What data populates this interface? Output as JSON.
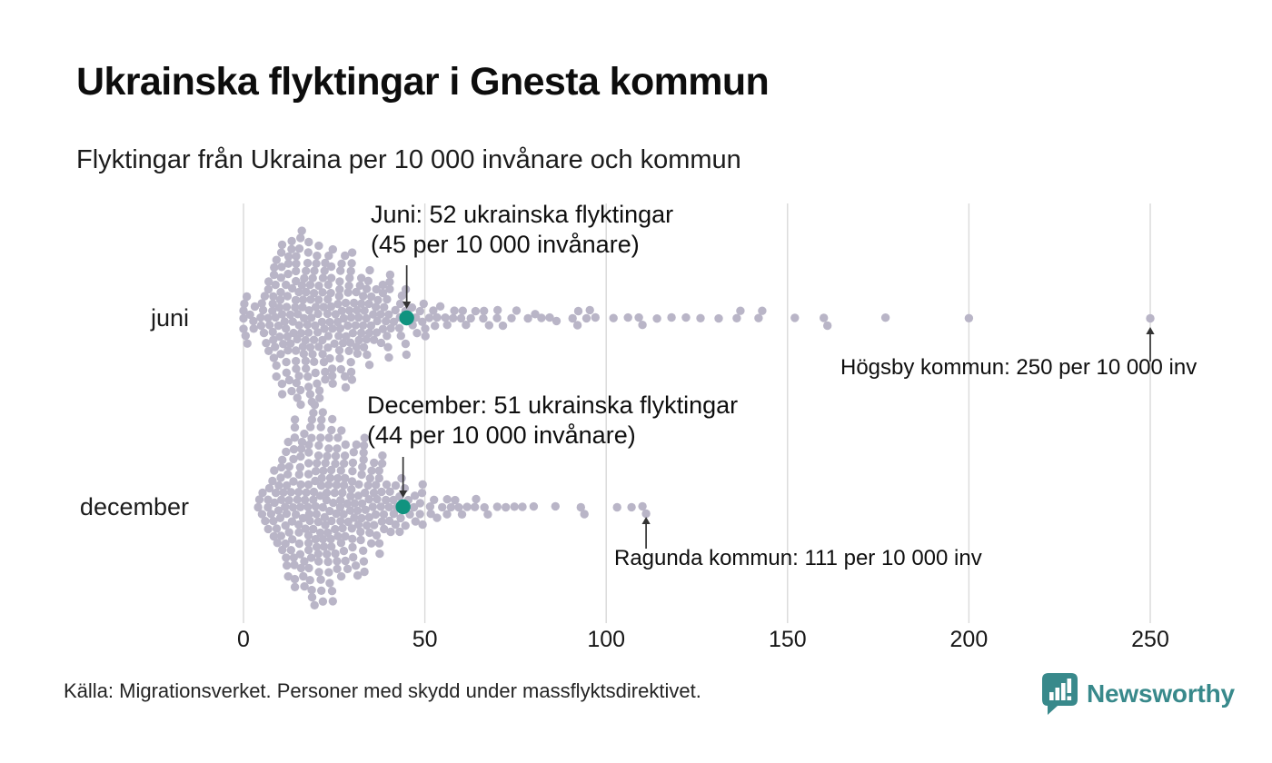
{
  "header": {
    "title": "Ukrainska flyktingar i Gnesta kommun",
    "subtitle": "Flyktingar från Ukraina per 10 000 invånare och kommun"
  },
  "chart_data": {
    "type": "beeswarm",
    "title": "Ukrainska flyktingar i Gnesta kommun",
    "subtitle": "Flyktingar från Ukraina per 10 000 invånare och kommun",
    "unit": "flyktingar per 10 000 invånare",
    "x_axis": {
      "min": 0,
      "max": 250,
      "ticks": [
        0,
        50,
        100,
        150,
        200,
        250
      ],
      "grid": true
    },
    "legend_position": "none",
    "colors": {
      "dot": "#b9b5c7",
      "highlight": "#10937f",
      "gridline": "#d9d9d9",
      "arrow": "#333333",
      "text": "#0f0f0f",
      "brand": "#38898b"
    },
    "rows": [
      {
        "label": "juni",
        "highlight": {
          "municipality": "Gnesta",
          "refugees": 52,
          "per_10000": 45,
          "annotation": {
            "line1": "Juni: 52 ukrainska flyktingar",
            "line2": "(45 per 10 000 invånare)"
          }
        },
        "outlier": {
          "municipality": "Högsby",
          "per_10000": 250,
          "label": "Högsby kommun: 250 per 10 000 inv"
        },
        "distribution_bins": [
          [
            0.2,
            5
          ],
          [
            1.3,
            3
          ],
          [
            3,
            3
          ],
          [
            5,
            5
          ],
          [
            6.5,
            7
          ],
          [
            8,
            9
          ],
          [
            9.5,
            11
          ],
          [
            11,
            12
          ],
          [
            12.5,
            13
          ],
          [
            14,
            14
          ],
          [
            15.5,
            14
          ],
          [
            17,
            13
          ],
          [
            18.5,
            13
          ],
          [
            20,
            13
          ],
          [
            21.5,
            12
          ],
          [
            23,
            12
          ],
          [
            24.5,
            11
          ],
          [
            26,
            11
          ],
          [
            27.5,
            10
          ],
          [
            29,
            10
          ],
          [
            30.5,
            9
          ],
          [
            32,
            8
          ],
          [
            33.5,
            8
          ],
          [
            35,
            7
          ],
          [
            36.5,
            7
          ],
          [
            38,
            6
          ],
          [
            39.5,
            6
          ],
          [
            41,
            5
          ],
          [
            42.5,
            4
          ],
          [
            44,
            4
          ],
          [
            45.5,
            3
          ],
          [
            47,
            3
          ],
          [
            48.5,
            3
          ],
          [
            50,
            3
          ],
          [
            52,
            3
          ],
          [
            54,
            2
          ],
          [
            56,
            2
          ],
          [
            58,
            2
          ],
          [
            60,
            2
          ],
          [
            62,
            2
          ],
          [
            64,
            1
          ],
          [
            66,
            2
          ],
          [
            68,
            1
          ],
          [
            70,
            2
          ],
          [
            72,
            1
          ],
          [
            74,
            1
          ],
          [
            76,
            1
          ],
          [
            78,
            1
          ],
          [
            80,
            1
          ],
          [
            82,
            1
          ],
          [
            85,
            1
          ],
          [
            87,
            1
          ],
          [
            90,
            1
          ],
          [
            92,
            2
          ],
          [
            95,
            2
          ],
          [
            97,
            1
          ]
        ],
        "tail_values": [
          102,
          106,
          109,
          110,
          114,
          118,
          122,
          126,
          131,
          136,
          137,
          142,
          143,
          152,
          160,
          161,
          177,
          200,
          250
        ]
      },
      {
        "label": "december",
        "highlight": {
          "municipality": "Gnesta",
          "refugees": 51,
          "per_10000": 44,
          "annotation": {
            "line1": "December: 51 ukrainska flyktingar",
            "line2": "(44 per 10 000 invånare)"
          }
        },
        "outlier": {
          "municipality": "Ragunda",
          "per_10000": 111,
          "label": "Ragunda kommun: 111 per 10 000 inv"
        },
        "distribution_bins": [
          [
            4,
            2
          ],
          [
            5.5,
            3
          ],
          [
            7,
            5
          ],
          [
            8.5,
            7
          ],
          [
            10,
            9
          ],
          [
            11.5,
            11
          ],
          [
            13,
            12
          ],
          [
            14.5,
            13
          ],
          [
            16,
            14
          ],
          [
            17.5,
            15
          ],
          [
            19,
            15
          ],
          [
            20.5,
            15
          ],
          [
            22,
            15
          ],
          [
            23.5,
            15
          ],
          [
            25,
            14
          ],
          [
            26.5,
            14
          ],
          [
            28,
            12
          ],
          [
            29.5,
            11
          ],
          [
            31,
            10
          ],
          [
            32.5,
            10
          ],
          [
            34,
            9
          ],
          [
            35.5,
            8
          ],
          [
            37,
            8
          ],
          [
            38.5,
            7
          ],
          [
            40,
            6
          ],
          [
            41.5,
            5
          ],
          [
            43,
            4
          ],
          [
            45,
            4
          ],
          [
            46.5,
            3
          ],
          [
            48,
            3
          ],
          [
            50,
            3
          ],
          [
            52,
            3
          ],
          [
            54,
            2
          ],
          [
            56,
            2
          ],
          [
            58,
            2
          ],
          [
            60,
            2
          ],
          [
            62,
            1
          ],
          [
            64,
            2
          ],
          [
            66,
            1
          ],
          [
            68,
            1
          ],
          [
            70,
            1
          ],
          [
            72,
            1
          ],
          [
            75,
            1
          ],
          [
            77,
            1
          ]
        ],
        "tail_values": [
          80,
          86,
          93,
          94,
          103,
          107,
          110,
          111
        ]
      }
    ]
  },
  "footer": {
    "source": "Källa: Migrationsverket. Personer med skydd under massflyktsdirektivet.",
    "brand": "Newsworthy"
  }
}
